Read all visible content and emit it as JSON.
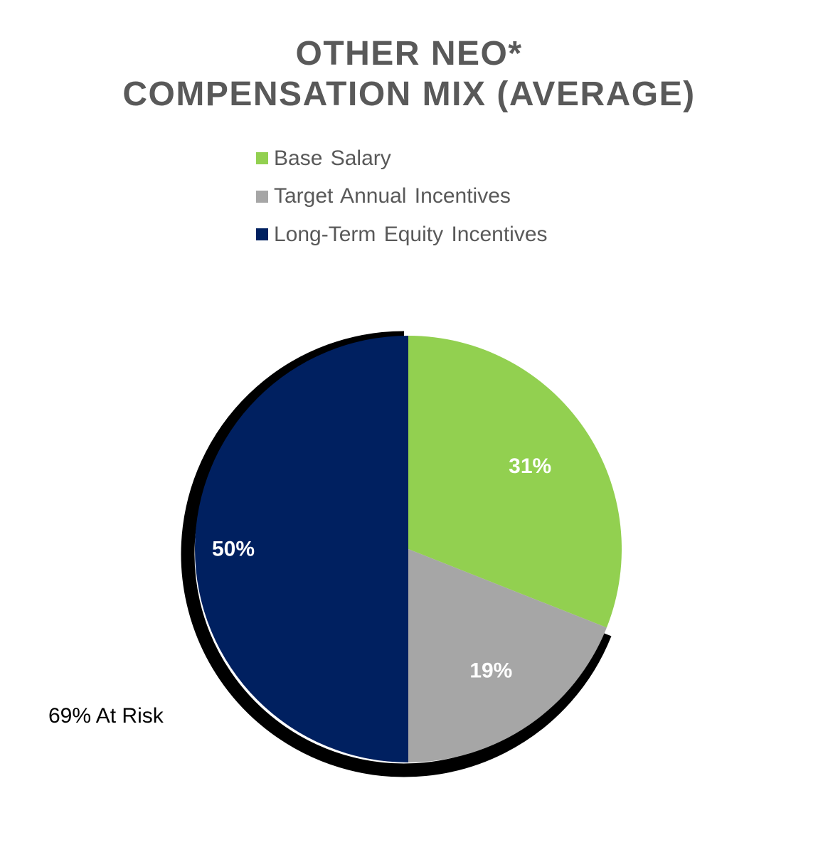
{
  "chart_data": {
    "type": "pie",
    "title": "OTHER NEO* COMPENSATION MIX (AVERAGE)",
    "title_lines": [
      "OTHER NEO*",
      "COMPENSATION MIX (AVERAGE)"
    ],
    "categories": [
      "Base Salary",
      "Target Annual Incentives",
      "Long-Term Equity Incentives"
    ],
    "values": [
      31,
      19,
      50
    ],
    "value_labels": [
      "31%",
      "19%",
      "50%"
    ],
    "colors": [
      "#92D050",
      "#A6A6A6",
      "#002060"
    ],
    "legend_position": "top",
    "annotation": "69% At Risk",
    "highlighted_group": [
      "Target Annual Incentives",
      "Long-Term Equity Incentives"
    ]
  }
}
